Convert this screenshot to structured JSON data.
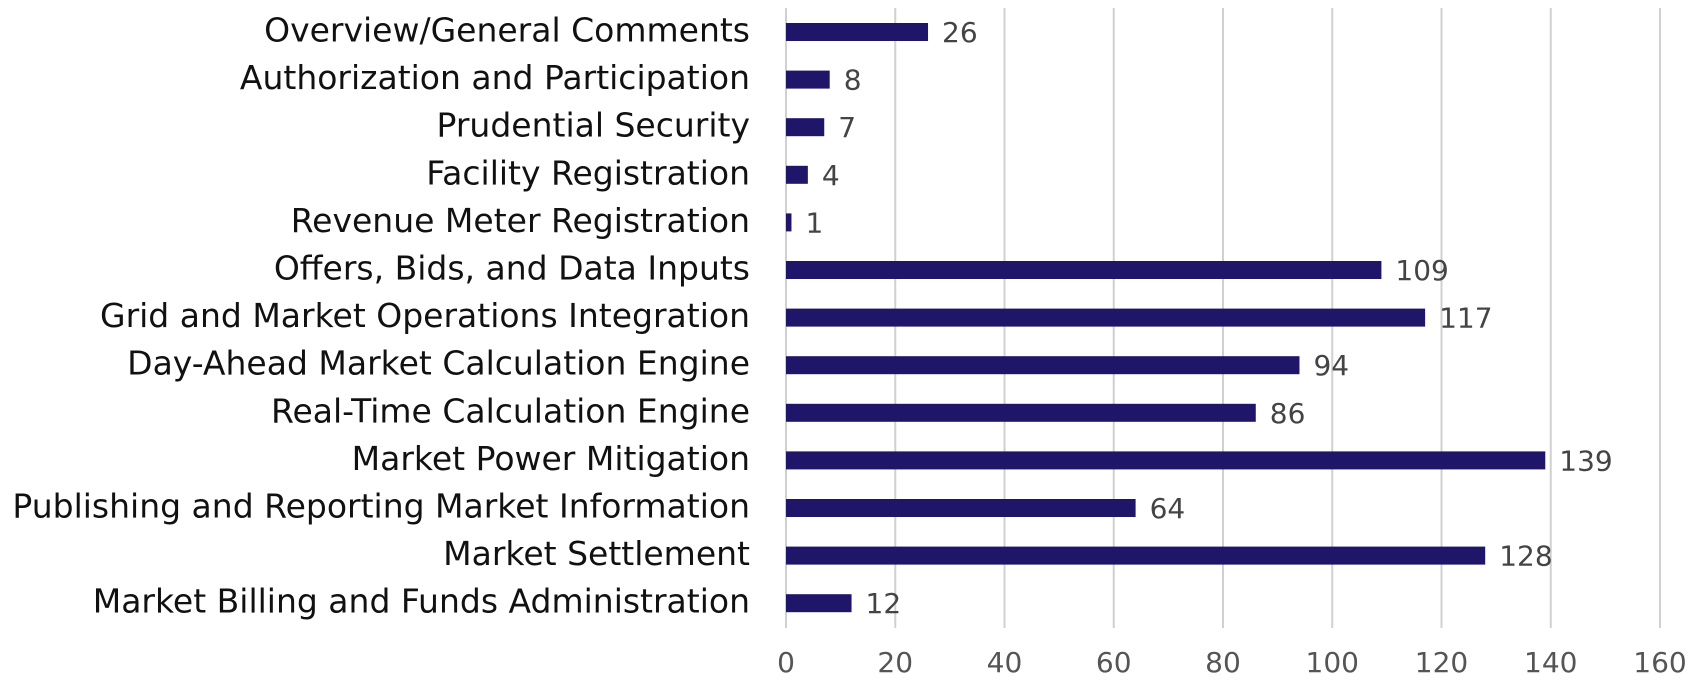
{
  "chart_data": {
    "type": "bar",
    "orientation": "horizontal",
    "categories": [
      "Overview/General Comments",
      "Authorization and Participation",
      "Prudential Security",
      "Facility Registration",
      "Revenue Meter Registration",
      "Offers, Bids, and Data Inputs",
      "Grid and Market Operations Integration",
      "Day-Ahead Market Calculation Engine",
      "Real-Time Calculation Engine",
      "Market Power Mitigation",
      "Publishing and Reporting Market Information",
      "Market Settlement",
      "Market Billing and Funds Administration"
    ],
    "values": [
      26,
      8,
      7,
      4,
      1,
      109,
      117,
      94,
      86,
      139,
      64,
      128,
      12
    ],
    "color": "#1f1569",
    "xlim": [
      0,
      160
    ],
    "xticks": [
      0,
      20,
      40,
      60,
      80,
      100,
      120,
      140,
      160
    ],
    "grid": true
  }
}
